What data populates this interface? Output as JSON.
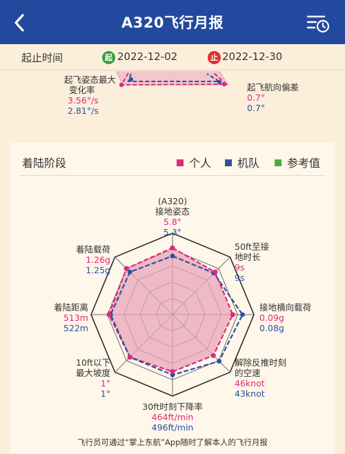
{
  "header": {
    "title": "A320飞行月报",
    "back_icon": "chevron-left-icon",
    "menu_icon": "list-clock-icon",
    "bg": "#23499e"
  },
  "date_range": {
    "label": "起止时间",
    "start_badge": "起",
    "start": "2022-12-02",
    "end_badge": "止",
    "end": "2022-12-30"
  },
  "takeoff_partial": {
    "left_label_1": "起飞姿态最大",
    "left_label_2": "变化率",
    "left_personal": "3.56°/s",
    "left_fleet": "2.81°/s",
    "right_label": "起飞航向偏差",
    "right_personal": "0.7°",
    "right_fleet": "0.7°"
  },
  "landing": {
    "title": "着陆阶段",
    "legend": [
      {
        "label": "个人",
        "color": "#e0287a"
      },
      {
        "label": "机队",
        "color": "#2f4fa0"
      },
      {
        "label": "参考值",
        "color": "#4caf3a"
      }
    ],
    "axes": [
      {
        "line1": "(A320)",
        "line2": "接地姿态",
        "personal": "5.8°",
        "fleet": "5.3°"
      },
      {
        "line1": "50ft至接",
        "line2": "地时长",
        "personal": "9s",
        "fleet": "9s"
      },
      {
        "line1": "接地横向载荷",
        "line2": "",
        "personal": "0.09g",
        "fleet": "0.08g"
      },
      {
        "line1": "解除反推时刻",
        "line2": "的空速",
        "personal": "46knot",
        "fleet": "43knot"
      },
      {
        "line1": "30ft时刻下降率",
        "line2": "",
        "personal": "464ft/min",
        "fleet": "496ft/min"
      },
      {
        "line1": "10ft以下",
        "line2": "最大坡度",
        "personal": "1°",
        "fleet": "1°"
      },
      {
        "line1": "着陆距离",
        "line2": "",
        "personal": "513m",
        "fleet": "522m"
      },
      {
        "line1": "着陆载荷",
        "line2": "",
        "personal": "1.26g",
        "fleet": "1.25g"
      }
    ],
    "radar_personal": [
      0.82,
      0.74,
      0.74,
      0.71,
      0.7,
      0.74,
      0.78,
      0.8
    ],
    "radar_fleet": [
      0.72,
      0.72,
      0.86,
      0.81,
      0.74,
      0.74,
      0.76,
      0.74
    ]
  },
  "footer": "飞行员可通过“掌上东航”App随时了解本人的飞行月报"
}
